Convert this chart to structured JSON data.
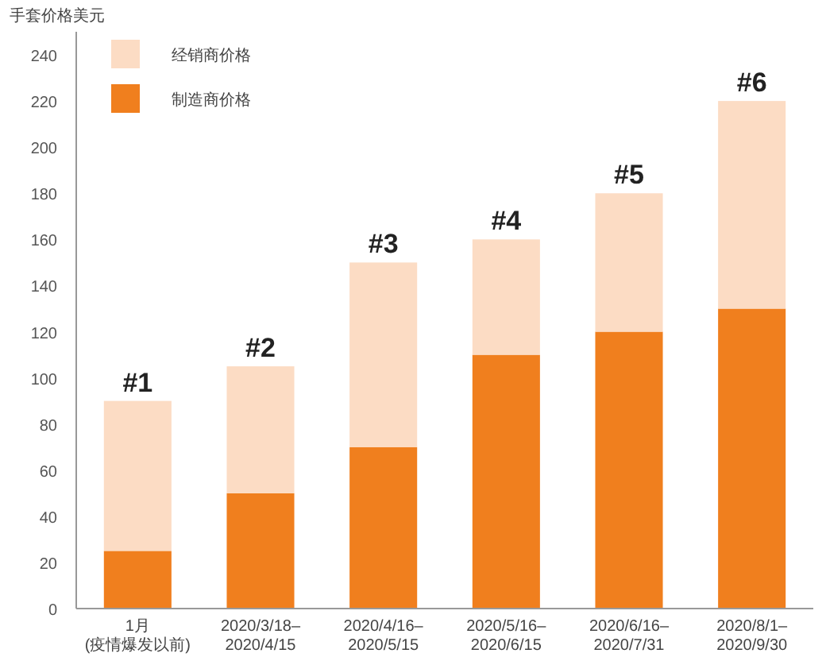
{
  "chart_data": {
    "type": "bar",
    "stacked": true,
    "ylabel": "手套价格美元",
    "categories": [
      "1月\n(疫情爆发以前)",
      "2020/3/18–\n2020/4/15",
      "2020/4/16–\n2020/5/15",
      "2020/5/16–\n2020/6/15",
      "2020/6/16–\n2020/7/31",
      "2020/8/1–\n2020/9/30"
    ],
    "series": [
      {
        "name": "制造商价格",
        "color": "#f07f1e",
        "values": [
          25,
          50,
          70,
          110,
          120,
          130
        ]
      },
      {
        "name": "经销商价格",
        "color": "#fcdcc4",
        "values": [
          65,
          55,
          80,
          50,
          60,
          90
        ]
      }
    ],
    "ylim": [
      0,
      250
    ],
    "yticks": [
      0,
      20,
      40,
      60,
      80,
      100,
      120,
      140,
      160,
      180,
      200,
      220,
      240
    ],
    "grid": false,
    "legend": "top left",
    "annotations": [
      {
        "text": "#1",
        "x": "1月\n(疫情爆发以前)",
        "y": 90
      },
      {
        "text": "#2",
        "x": "2020/3/18–\n2020/4/15",
        "y": 105
      },
      {
        "text": "#3",
        "x": "2020/4/16–\n2020/5/15",
        "y": 150
      },
      {
        "text": "#4",
        "x": "2020/5/16–\n2020/6/15",
        "y": 160
      },
      {
        "text": "#5",
        "x": "2020/6/16–\n2020/7/31",
        "y": 180
      },
      {
        "text": "#6",
        "x": "2020/8/1–\n2020/9/30",
        "y": 220
      }
    ]
  }
}
